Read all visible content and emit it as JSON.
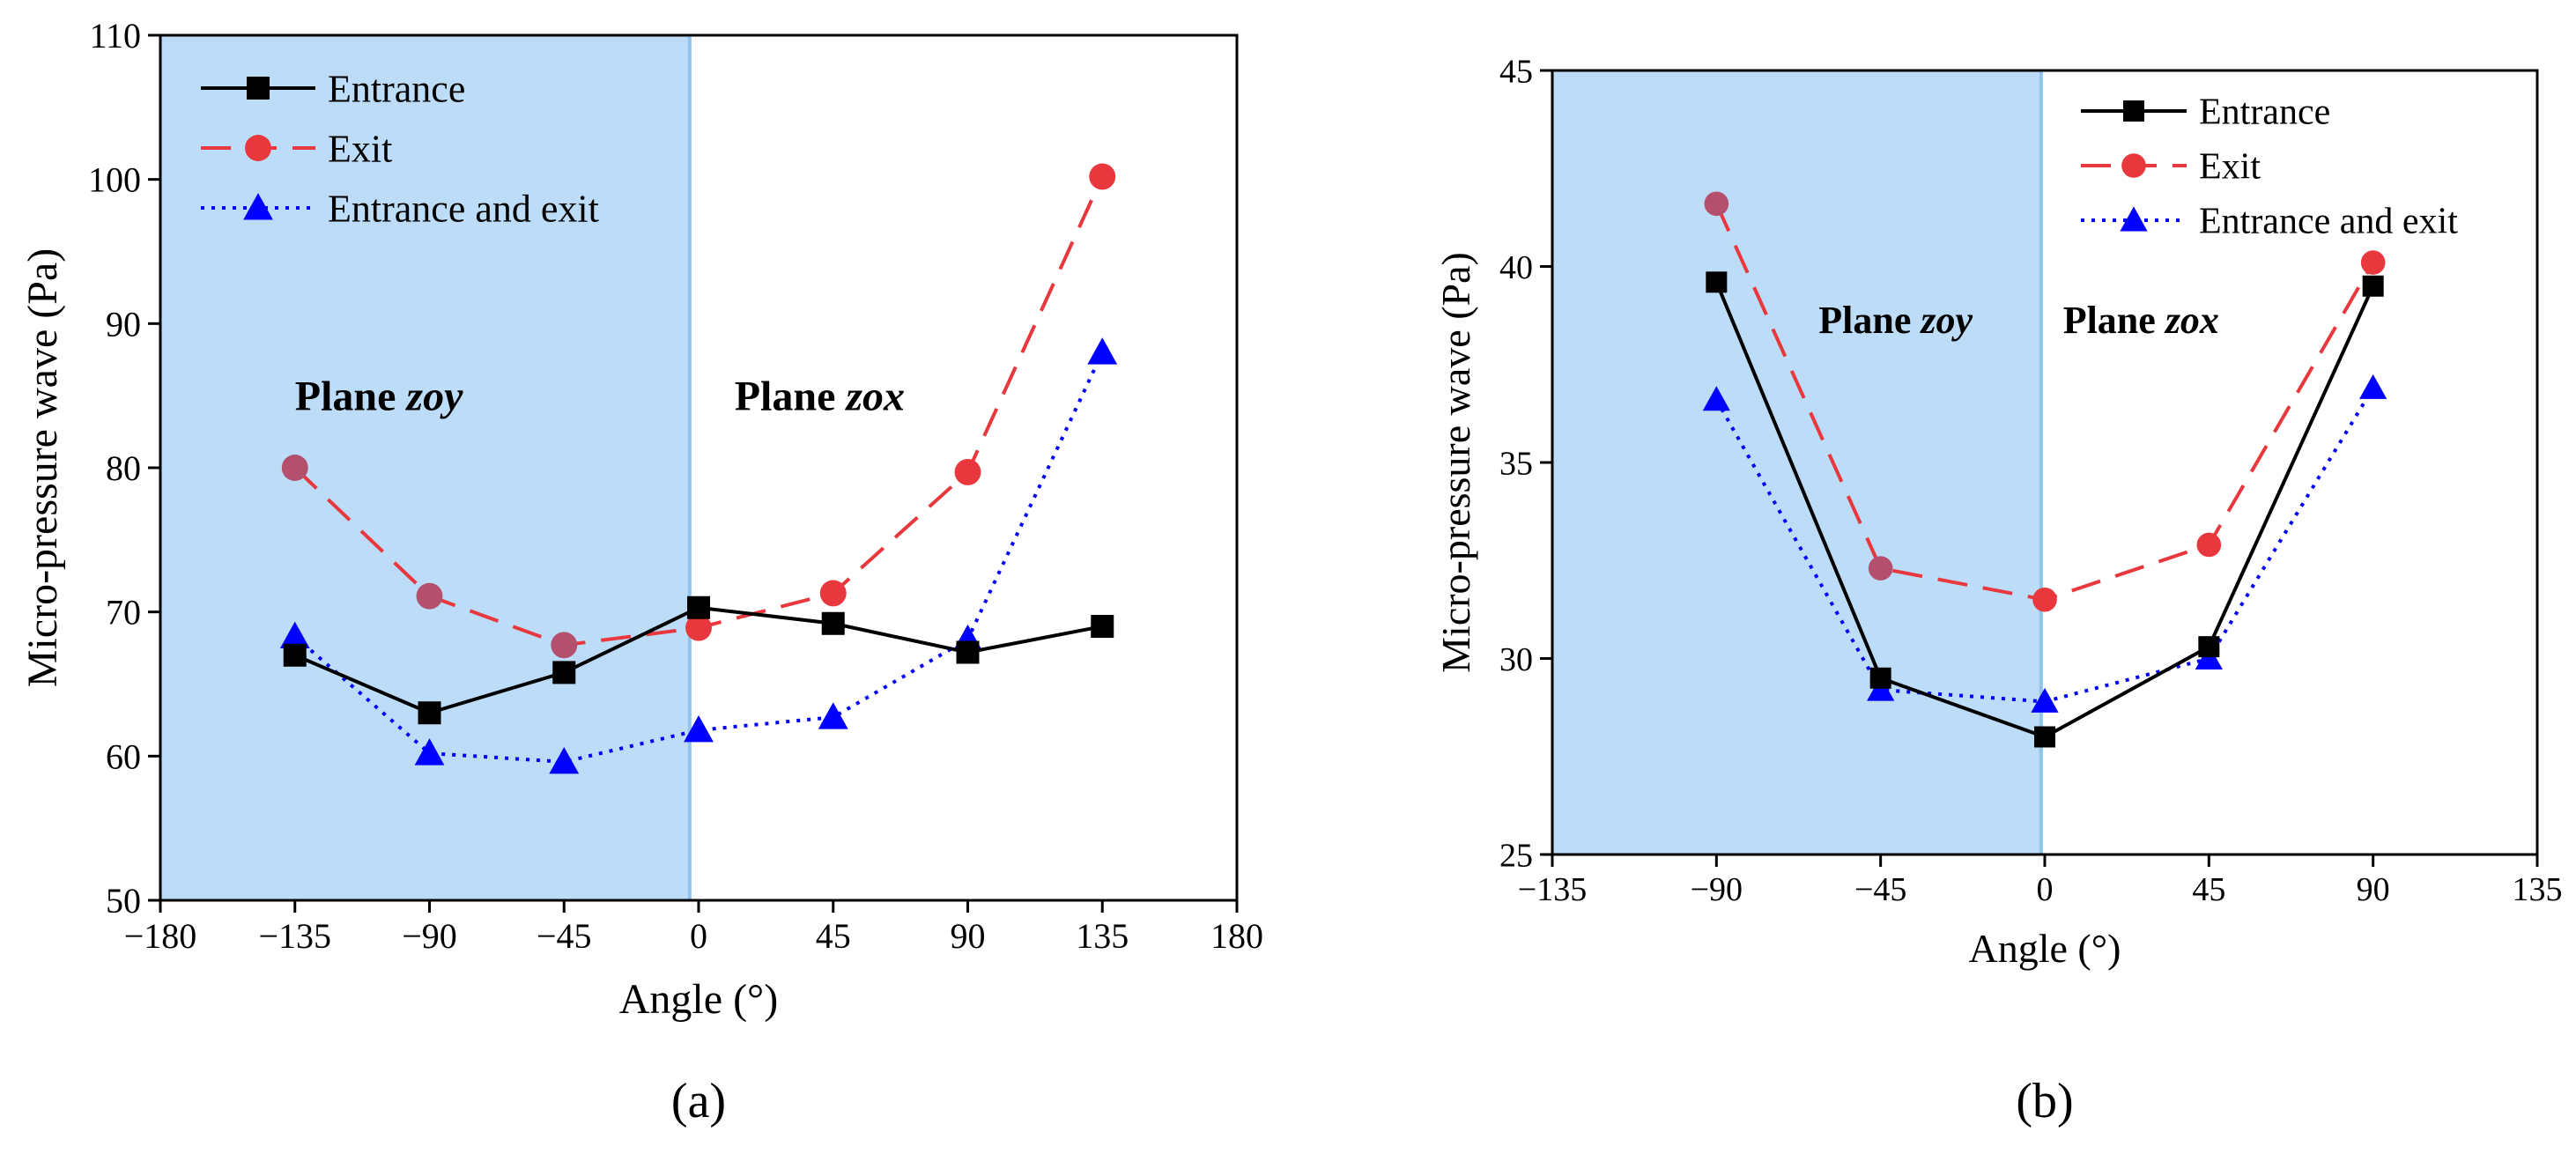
{
  "colors": {
    "entrance": "#000000",
    "exit": "#e8383d",
    "entrance_exit": "#0000ff",
    "shade": "#bcdcf7",
    "divider": "#8ec4ee",
    "exit_shaded": "#b4506e"
  },
  "chart_data": [
    {
      "type": "line",
      "panel_label": "(a)",
      "xlabel": "Angle (°)",
      "ylabel": "Micro-pressure wave (Pa)",
      "xlim": [
        -180,
        180
      ],
      "ylim": [
        50,
        110
      ],
      "xticks": [
        -180,
        -135,
        -90,
        -45,
        0,
        45,
        90,
        135,
        180
      ],
      "yticks": [
        50,
        60,
        70,
        80,
        90,
        100,
        110
      ],
      "xtick_labels": [
        "−180",
        "−135",
        "−90",
        "−45",
        "0",
        "45",
        "90",
        "135",
        "180"
      ],
      "ytick_labels": [
        "50",
        "60",
        "70",
        "80",
        "90",
        "100",
        "110"
      ],
      "shaded_region": [
        -180,
        -3
      ],
      "divider_x": -3,
      "legend_position": "top-left",
      "annotations": [
        {
          "bold": "Plane ",
          "italic": "zoy",
          "x": -135,
          "y": 84
        },
        {
          "bold": "Plane ",
          "italic": "zox",
          "x": 12,
          "y": 84
        }
      ],
      "x": [
        -135,
        -90,
        -45,
        0,
        45,
        90,
        135
      ],
      "series": [
        {
          "name": "Entrance",
          "style": "solid",
          "marker": "square",
          "values": [
            67.0,
            63.0,
            65.8,
            70.3,
            69.2,
            67.2,
            69.0
          ]
        },
        {
          "name": "Exit",
          "style": "dashed",
          "marker": "circle",
          "values": [
            80.0,
            71.1,
            67.7,
            68.9,
            71.3,
            79.7,
            100.2
          ]
        },
        {
          "name": "Entrance and exit",
          "style": "dotted",
          "marker": "triangle",
          "values": [
            68.3,
            60.2,
            59.6,
            61.8,
            62.7,
            68.1,
            88.0
          ]
        }
      ]
    },
    {
      "type": "line",
      "panel_label": "(b)",
      "xlabel": "Angle (°)",
      "ylabel": "Micro-pressure wave (Pa)",
      "xlim": [
        -135,
        135
      ],
      "ylim": [
        25,
        45
      ],
      "xticks": [
        -135,
        -90,
        -45,
        0,
        45,
        90,
        135
      ],
      "yticks": [
        25,
        30,
        35,
        40,
        45
      ],
      "xtick_labels": [
        "−135",
        "−90",
        "−45",
        "0",
        "45",
        "90",
        "135"
      ],
      "ytick_labels": [
        "25",
        "30",
        "35",
        "40",
        "45"
      ],
      "shaded_region": [
        -135,
        -1
      ],
      "divider_x": -1,
      "legend_position": "top-right",
      "annotations": [
        {
          "bold": "Plane ",
          "italic": "zoy",
          "x": -62,
          "y": 38.3
        },
        {
          "bold": "Plane ",
          "italic": "zox",
          "x": 5,
          "y": 38.3
        }
      ],
      "x": [
        -90,
        -45,
        0,
        45,
        90
      ],
      "series": [
        {
          "name": "Entrance",
          "style": "solid",
          "marker": "square",
          "values": [
            39.6,
            29.5,
            28.0,
            30.3,
            39.5
          ]
        },
        {
          "name": "Exit",
          "style": "dashed",
          "marker": "circle",
          "values": [
            41.6,
            32.3,
            31.5,
            32.9,
            40.1
          ]
        },
        {
          "name": "Entrance and exit",
          "style": "dotted",
          "marker": "triangle",
          "values": [
            36.6,
            29.2,
            28.9,
            30.0,
            36.9
          ]
        }
      ]
    }
  ]
}
